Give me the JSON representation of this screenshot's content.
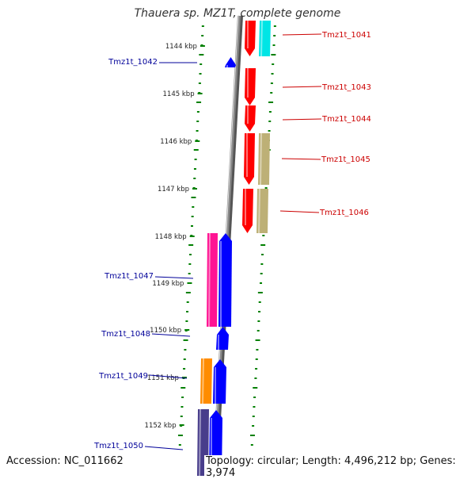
{
  "title": "Thauera sp. MZ1T, complete genome",
  "footer": {
    "accession": "Accession: NC_011662",
    "summary": "Topology: circular; Length: 4,496,212 bp; Genes: 3,974"
  },
  "ruler": {
    "ticks": [
      "1144 kbp",
      "1145 kbp",
      "1146 kbp",
      "1147 kbp",
      "1148 kbp",
      "1149 kbp",
      "1150 kbp",
      "1151 kbp",
      "1152 kbp"
    ]
  },
  "genes": [
    {
      "label": "Tmz1t_1041",
      "strand": "forward",
      "label_color": "#cc0000"
    },
    {
      "label": "Tmz1t_1042",
      "strand": "reverse",
      "label_color": "#000099"
    },
    {
      "label": "Tmz1t_1043",
      "strand": "forward",
      "label_color": "#cc0000"
    },
    {
      "label": "Tmz1t_1044",
      "strand": "forward",
      "label_color": "#cc0000"
    },
    {
      "label": "Tmz1t_1045",
      "strand": "forward",
      "label_color": "#cc0000"
    },
    {
      "label": "Tmz1t_1046",
      "strand": "forward",
      "label_color": "#cc0000"
    },
    {
      "label": "Tmz1t_1047",
      "strand": "reverse",
      "label_color": "#000099"
    },
    {
      "label": "Tmz1t_1048",
      "strand": "reverse",
      "label_color": "#000099"
    },
    {
      "label": "Tmz1t_1049",
      "strand": "reverse",
      "label_color": "#000099"
    },
    {
      "label": "Tmz1t_1050",
      "strand": "reverse",
      "label_color": "#000099"
    }
  ],
  "colors": {
    "forward_cds": "#ff0000",
    "reverse_cds": "#0000ff",
    "backbone": "#888888",
    "gc_dots": "#008000",
    "cog_cyan": "#00e5e5",
    "cog_khaki": "#bdb076",
    "cog_pink": "#ff1493",
    "cog_orange": "#ff8c00",
    "cog_purple": "#483d8b"
  }
}
